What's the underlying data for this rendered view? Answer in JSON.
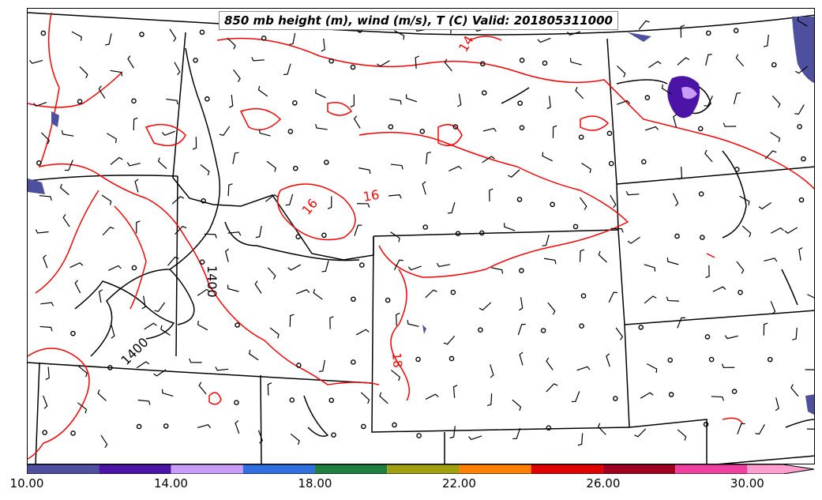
{
  "title": "850 mb height (m), wind (m/s), T (C) Valid: 201805311000",
  "contour_labels": {
    "height": [
      "1400",
      "1400"
    ],
    "temperature": [
      "14",
      "16",
      "16",
      "18"
    ]
  },
  "colorbar": {
    "tick_labels": [
      "10.00",
      "14.00",
      "18.00",
      "22.00",
      "26.00",
      "30.00"
    ],
    "range": [
      10,
      31
    ],
    "segments": [
      {
        "from": 10,
        "to": 12,
        "color": "#4f4f9f"
      },
      {
        "from": 12,
        "to": 14,
        "color": "#4b14a6"
      },
      {
        "from": 14,
        "to": 16,
        "color": "#c89cf7"
      },
      {
        "from": 16,
        "to": 18,
        "color": "#2f6fdf"
      },
      {
        "from": 18,
        "to": 20,
        "color": "#1f7f3f"
      },
      {
        "from": 20,
        "to": 22,
        "color": "#9f9f0f"
      },
      {
        "from": 22,
        "to": 24,
        "color": "#ff7f00"
      },
      {
        "from": 24,
        "to": 26,
        "color": "#df0000"
      },
      {
        "from": 26,
        "to": 28,
        "color": "#a0001f"
      },
      {
        "from": 28,
        "to": 30,
        "color": "#ef3f9f"
      },
      {
        "from": 30,
        "to": 31,
        "color": "#ff9fcf"
      }
    ]
  },
  "colors": {
    "temperature_contour": "#ff0000",
    "height_contour": "#000000",
    "boundaries": "#000000"
  }
}
